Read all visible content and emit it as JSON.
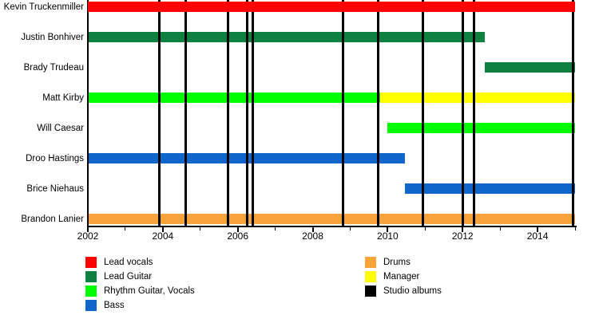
{
  "chart_data": {
    "type": "gantt-timeline",
    "title": "",
    "x_axis": {
      "min": 2002,
      "max": 2015,
      "major_ticks": [
        2002,
        2004,
        2006,
        2008,
        2010,
        2012,
        2014
      ],
      "minor_ticks": [
        2003,
        2005,
        2007,
        2009,
        2011,
        2013,
        2015
      ]
    },
    "role_colors": {
      "Lead vocals": "#FF0000",
      "Lead Guitar": "#0E8040",
      "Rhythm Guitar, Vocals": "#00FF00",
      "Bass": "#1166CB",
      "Drums": "#F9A33B",
      "Manager": "#FFFF00",
      "Studio albums": "#000000"
    },
    "members": [
      {
        "name": "Kevin Truckenmiller",
        "segments": [
          {
            "role": "Lead vocals",
            "start": 2002,
            "end": 2015
          }
        ]
      },
      {
        "name": "Justin Bonhiver",
        "segments": [
          {
            "role": "Lead Guitar",
            "start": 2002,
            "end": 2012.6
          }
        ]
      },
      {
        "name": "Brady Trudeau",
        "segments": [
          {
            "role": "Lead Guitar",
            "start": 2012.6,
            "end": 2015
          }
        ]
      },
      {
        "name": "Matt Kirby",
        "segments": [
          {
            "role": "Rhythm Guitar, Vocals",
            "start": 2002,
            "end": 2009.8
          },
          {
            "role": "Manager",
            "start": 2009.8,
            "end": 2015
          }
        ]
      },
      {
        "name": "Will Caesar",
        "segments": [
          {
            "role": "Rhythm Guitar, Vocals",
            "start": 2010,
            "end": 2015
          }
        ]
      },
      {
        "name": "Droo Hastings",
        "segments": [
          {
            "role": "Bass",
            "start": 2002,
            "end": 2010.45
          }
        ]
      },
      {
        "name": "Brice Niehaus",
        "segments": [
          {
            "role": "Bass",
            "start": 2010.45,
            "end": 2015
          }
        ]
      },
      {
        "name": "Brandon Lanier",
        "segments": [
          {
            "role": "Drums",
            "start": 2002,
            "end": 2015
          }
        ]
      }
    ],
    "album_lines": {
      "label": "Studio albums",
      "years": [
        2003.9,
        2004.6,
        2005.75,
        2006.25,
        2006.4,
        2008.8,
        2009.75,
        2010.95,
        2012.0,
        2012.3,
        2014.95
      ]
    },
    "legend": {
      "left_column": [
        {
          "label": "Lead vocals",
          "color": "#FF0000"
        },
        {
          "label": "Lead Guitar",
          "color": "#0E8040"
        },
        {
          "label": "Rhythm Guitar, Vocals",
          "color": "#00FF00"
        },
        {
          "label": "Bass",
          "color": "#1166CB"
        }
      ],
      "right_column": [
        {
          "label": "Drums",
          "color": "#F9A33B"
        },
        {
          "label": "Manager",
          "color": "#FFFF00"
        },
        {
          "label": "Studio albums",
          "color": "#000000"
        }
      ]
    }
  }
}
